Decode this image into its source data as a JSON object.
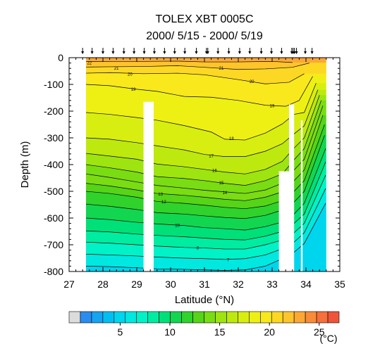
{
  "chart_data": {
    "type": "heatmap",
    "title": "TOLEX XBT 0005C",
    "subtitle": "2000/ 5/15 - 2000/ 5/19",
    "xlabel": "Latitude (°N)",
    "ylabel": "Depth (m)",
    "xlim": [
      27,
      35
    ],
    "ylim": [
      -800,
      0
    ],
    "x_ticks": [
      "27",
      "28",
      "29",
      "30",
      "31",
      "32",
      "33",
      "34",
      "35"
    ],
    "y_ticks": [
      "0",
      "-100",
      "-200",
      "-300",
      "-400",
      "-500",
      "-600",
      "-700",
      "-800"
    ],
    "colorbar": {
      "unit": "(°C)",
      "range": [
        1,
        27
      ],
      "tick_values": [
        5,
        10,
        15,
        20,
        25
      ],
      "tick_labels": [
        "5",
        "10",
        "15",
        "20",
        "25"
      ]
    },
    "station_latitudes": [
      27.4,
      27.68,
      28.0,
      28.3,
      28.62,
      28.92,
      29.22,
      29.52,
      29.82,
      30.12,
      30.42,
      30.76,
      31.06,
      31.1,
      31.4,
      31.72,
      32.04,
      32.34,
      32.68,
      32.98,
      33.28,
      33.58,
      33.62,
      33.66,
      33.72,
      33.98,
      34.18
    ],
    "data_gaps": [
      {
        "lat": [
          27.0,
          27.5
        ],
        "depth": [
          0,
          -800
        ]
      },
      {
        "lat": [
          29.2,
          29.5
        ],
        "depth": [
          -165,
          -800
        ]
      },
      {
        "lat": [
          33.2,
          33.5
        ],
        "depth": [
          -425,
          -800
        ]
      },
      {
        "lat": [
          33.5,
          33.65
        ],
        "depth": [
          -175,
          -800
        ]
      },
      {
        "lat": [
          33.85,
          33.9
        ],
        "depth": [
          -235,
          -800
        ]
      },
      {
        "lat": [
          34.6,
          35.0
        ],
        "depth": [
          0,
          -800
        ]
      }
    ],
    "isotherms": [
      {
        "t": 22,
        "lat": [
          27.5,
          28.3,
          29.2,
          30.2,
          31.0,
          32.0,
          33.0,
          33.6
        ],
        "depth": [
          -15,
          -14,
          -14,
          -13,
          -16,
          -16,
          -14,
          -18
        ]
      },
      {
        "t": 21,
        "lat": [
          27.5,
          28.2,
          29.2,
          30.2,
          31.0,
          32.0,
          32.8,
          33.6,
          34.1
        ],
        "depth": [
          -35,
          -34,
          -33,
          -30,
          -36,
          -44,
          -42,
          -36,
          -20
        ]
      },
      {
        "t": 20,
        "lat": [
          27.5,
          28.2,
          29.2,
          30.2,
          31.0,
          32.0,
          32.8,
          33.5,
          33.95
        ],
        "depth": [
          -58,
          -56,
          -60,
          -58,
          -64,
          -82,
          -98,
          -92,
          -60
        ]
      },
      {
        "t": 19,
        "lat": [
          27.5,
          28.2,
          29.0,
          29.6,
          30.4,
          31.2,
          32.0,
          32.8,
          33.4,
          33.8,
          34.2
        ],
        "depth": [
          -100,
          -105,
          -118,
          -126,
          -145,
          -148,
          -160,
          -178,
          -182,
          -160,
          -70
        ]
      },
      {
        "t": 18,
        "lat": [
          27.5,
          28.2,
          29.0,
          29.6,
          30.4,
          31.2,
          31.6,
          32.2,
          32.8,
          33.3,
          33.65,
          33.95,
          34.3
        ],
        "depth": [
          -205,
          -212,
          -224,
          -234,
          -254,
          -278,
          -305,
          -308,
          -282,
          -248,
          -212,
          -205,
          -95
        ]
      },
      {
        "t": 17,
        "lat": [
          27.5,
          28.2,
          29.0,
          29.6,
          30.4,
          31.0,
          31.6,
          32.2,
          32.8,
          33.3,
          33.65,
          33.95,
          34.35
        ],
        "depth": [
          -300,
          -305,
          -318,
          -330,
          -345,
          -362,
          -370,
          -370,
          -350,
          -322,
          -285,
          -255,
          -120
        ]
      },
      {
        "t": 16,
        "lat": [
          27.5,
          28.2,
          29.0,
          29.6,
          30.4,
          31.0,
          31.6,
          32.2,
          32.8,
          33.3,
          33.65,
          33.95,
          34.4
        ],
        "depth": [
          -358,
          -368,
          -380,
          -398,
          -408,
          -418,
          -428,
          -435,
          -418,
          -388,
          -338,
          -300,
          -140
        ]
      },
      {
        "t": 15,
        "lat": [
          27.5,
          28.2,
          29.0,
          29.6,
          30.4,
          31.0,
          31.6,
          32.2,
          32.8,
          33.3,
          33.65,
          33.95,
          34.45
        ],
        "depth": [
          -400,
          -412,
          -428,
          -445,
          -452,
          -460,
          -470,
          -478,
          -460,
          -435,
          -382,
          -340,
          -160
        ]
      },
      {
        "t": 14,
        "lat": [
          27.5,
          28.2,
          29.0,
          29.6,
          30.4,
          31.0,
          31.6,
          32.2,
          32.8,
          33.3,
          33.65,
          33.95,
          34.5
        ],
        "depth": [
          -435,
          -448,
          -465,
          -478,
          -488,
          -496,
          -502,
          -508,
          -495,
          -470,
          -420,
          -380,
          -180
        ]
      },
      {
        "t": 13,
        "lat": [
          27.5,
          28.2,
          29.0,
          29.6,
          30.4,
          31.0,
          31.6,
          32.2,
          32.8,
          33.3,
          33.65,
          33.95,
          34.5
        ],
        "depth": [
          -470,
          -480,
          -495,
          -508,
          -515,
          -522,
          -530,
          -535,
          -522,
          -502,
          -460,
          -420,
          -215
        ]
      },
      {
        "t": 12,
        "lat": [
          27.5,
          28.2,
          29.0,
          29.6,
          30.4,
          31.0,
          31.6,
          32.2,
          32.8,
          33.3,
          33.65,
          33.95,
          34.55
        ],
        "depth": [
          -500,
          -508,
          -522,
          -538,
          -545,
          -552,
          -560,
          -565,
          -555,
          -535,
          -500,
          -460,
          -250
        ]
      },
      {
        "t": 11,
        "lat": [
          27.5,
          28.2,
          29.0,
          29.6,
          30.4,
          31.0,
          31.6,
          32.2,
          32.8,
          33.3,
          33.65,
          33.95,
          34.55
        ],
        "depth": [
          -548,
          -556,
          -568,
          -580,
          -585,
          -592,
          -598,
          -602,
          -590,
          -570,
          -540,
          -500,
          -290
        ]
      },
      {
        "t": 10,
        "lat": [
          27.5,
          28.2,
          29.0,
          29.6,
          30.4,
          31.0,
          31.6,
          32.2,
          32.8,
          33.3,
          33.65,
          33.95,
          34.58
        ],
        "depth": [
          -600,
          -606,
          -616,
          -622,
          -628,
          -636,
          -640,
          -645,
          -632,
          -615,
          -585,
          -545,
          -340
        ]
      },
      {
        "t": 9,
        "lat": [
          27.5,
          28.2,
          29.0,
          29.6,
          30.4,
          31.0,
          31.6,
          32.2,
          32.8,
          33.3,
          33.65,
          33.95,
          34.58
        ],
        "depth": [
          -648,
          -652,
          -660,
          -665,
          -670,
          -675,
          -680,
          -682,
          -668,
          -650,
          -620,
          -585,
          -390
        ]
      },
      {
        "t": 8,
        "lat": [
          27.5,
          28.2,
          29.0,
          29.6,
          30.4,
          31.0,
          31.6,
          32.2,
          32.8,
          33.3,
          33.65,
          33.95,
          34.58
        ],
        "depth": [
          -690,
          -694,
          -700,
          -705,
          -710,
          -712,
          -716,
          -716,
          -700,
          -682,
          -655,
          -620,
          -440
        ]
      },
      {
        "t": 7,
        "lat": [
          27.5,
          28.2,
          29.0,
          29.6,
          30.4,
          31.0,
          31.6,
          32.2,
          32.8,
          33.3,
          33.65,
          33.95,
          34.58
        ],
        "depth": [
          -735,
          -738,
          -742,
          -746,
          -750,
          -752,
          -755,
          -752,
          -738,
          -715,
          -690,
          -655,
          -490
        ]
      },
      {
        "t": 6,
        "lat": [
          27.5,
          28.2,
          29.0,
          29.6,
          30.4,
          31.0,
          31.6,
          32.2,
          32.8,
          33.3,
          33.65,
          33.95,
          34.58
        ],
        "depth": [
          -780,
          -782,
          -786,
          -790,
          -792,
          -794,
          -796,
          -794,
          -780,
          -752,
          -728,
          -695,
          -545
        ]
      }
    ],
    "isotherm_labels": [
      {
        "t": 22,
        "lat": 27.6,
        "depth": -20
      },
      {
        "t": 21,
        "lat": 28.4,
        "depth": -40
      },
      {
        "t": 20,
        "lat": 28.8,
        "depth": -62
      },
      {
        "t": 19,
        "lat": 28.9,
        "depth": -118
      },
      {
        "t": 18,
        "lat": 31.8,
        "depth": -302
      },
      {
        "t": 17,
        "lat": 31.2,
        "depth": -368
      },
      {
        "t": 16,
        "lat": 31.3,
        "depth": -423
      },
      {
        "t": 15,
        "lat": 31.5,
        "depth": -468
      },
      {
        "t": 14,
        "lat": 31.6,
        "depth": -505
      },
      {
        "t": 13,
        "lat": 29.7,
        "depth": -510
      },
      {
        "t": 12,
        "lat": 29.8,
        "depth": -540
      },
      {
        "t": 10,
        "lat": 30.2,
        "depth": -628
      },
      {
        "t": 8,
        "lat": 30.8,
        "depth": -712
      },
      {
        "t": 7,
        "lat": 31.7,
        "depth": -756
      },
      {
        "t": 19,
        "lat": 33.0,
        "depth": -180
      },
      {
        "t": 20,
        "lat": 32.4,
        "depth": -90
      },
      {
        "t": 21,
        "lat": 31.5,
        "depth": -40
      }
    ],
    "colors": {
      "gap": "#ffffff",
      "missing_swatch": "#dcdcdc",
      "palette": [
        "#dcdcdc",
        "#2b8cf0",
        "#16a3f0",
        "#00bff0",
        "#00d5ee",
        "#00e8e0",
        "#00f2c6",
        "#00eca0",
        "#00e078",
        "#12d650",
        "#30d22c",
        "#55d418",
        "#7adc12",
        "#9ee410",
        "#bde90e",
        "#d8ee10",
        "#eef014",
        "#f8e81c",
        "#fcd824",
        "#fdc42c",
        "#fca834",
        "#f98c38",
        "#f5703a",
        "#ef543a"
      ]
    }
  }
}
